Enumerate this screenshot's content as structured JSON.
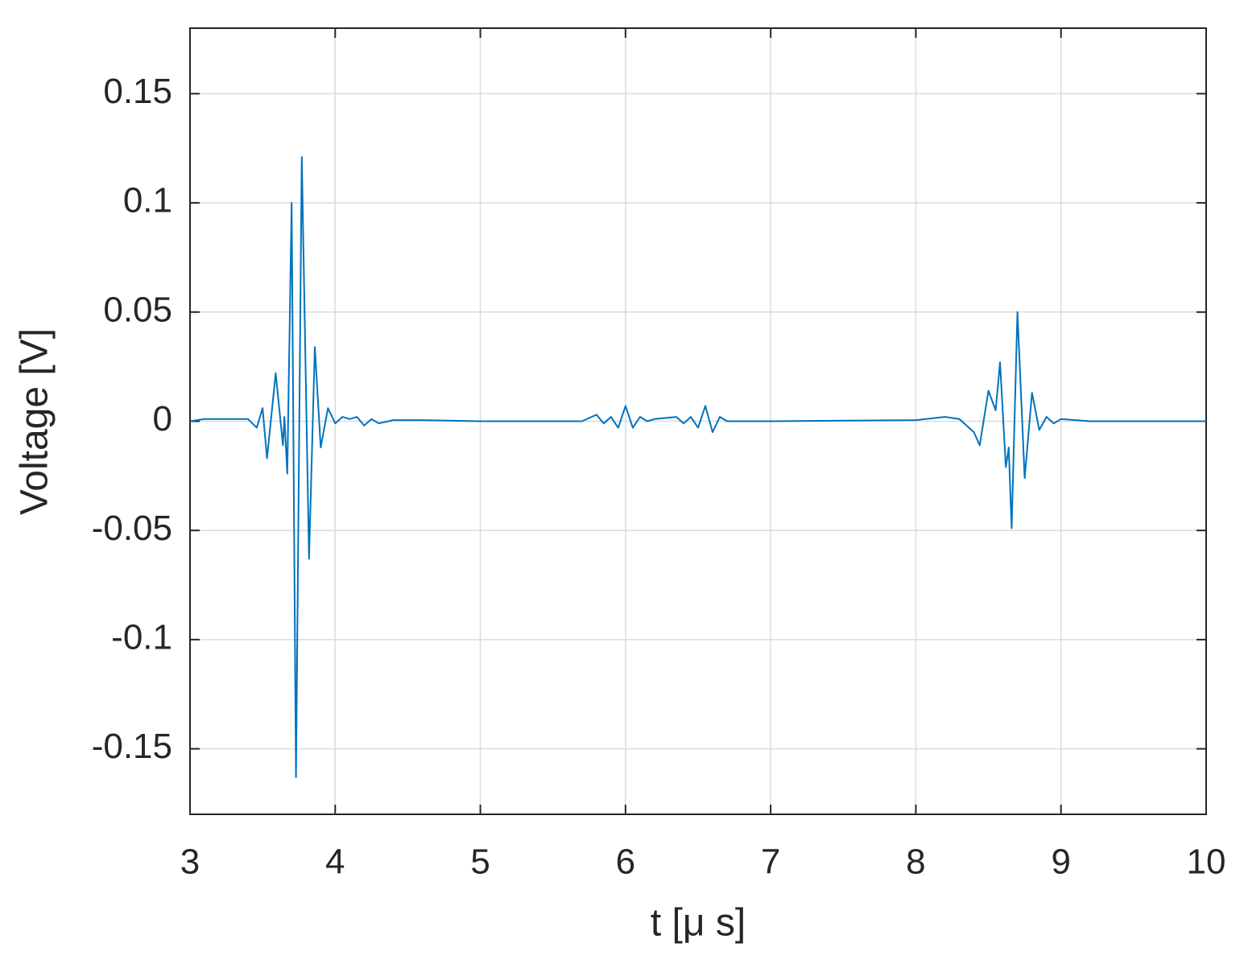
{
  "chart_data": {
    "type": "line",
    "xlabel": "t [μ s]",
    "ylabel": "Voltage [V]",
    "color": "#0072bd",
    "x": [
      3.0,
      3.1,
      3.4,
      3.46,
      3.5,
      3.53,
      3.59,
      3.64,
      3.65,
      3.67,
      3.7,
      3.73,
      3.77,
      3.82,
      3.86,
      3.9,
      3.95,
      4.0,
      4.05,
      4.1,
      4.15,
      4.2,
      4.25,
      4.3,
      4.4,
      4.6,
      5.0,
      5.7,
      5.8,
      5.85,
      5.9,
      5.95,
      6.0,
      6.05,
      6.1,
      6.15,
      6.2,
      6.35,
      6.4,
      6.45,
      6.5,
      6.55,
      6.6,
      6.65,
      6.7,
      7.0,
      8.0,
      8.2,
      8.3,
      8.4,
      8.44,
      8.5,
      8.55,
      8.58,
      8.62,
      8.64,
      8.66,
      8.7,
      8.75,
      8.8,
      8.85,
      8.9,
      8.95,
      9.0,
      9.2,
      10.0
    ],
    "values": [
      0.0,
      0.001,
      0.001,
      -0.003,
      0.006,
      -0.017,
      0.022,
      -0.011,
      0.002,
      -0.024,
      0.1,
      -0.163,
      0.121,
      -0.063,
      0.034,
      -0.012,
      0.006,
      -0.001,
      0.002,
      0.001,
      0.002,
      -0.002,
      0.001,
      -0.001,
      0.0005,
      0.0005,
      0.0,
      0.0,
      0.003,
      -0.001,
      0.002,
      -0.003,
      0.007,
      -0.003,
      0.002,
      0.0,
      0.001,
      0.002,
      -0.001,
      0.002,
      -0.003,
      0.007,
      -0.005,
      0.002,
      0.0,
      0.0,
      0.0005,
      0.002,
      0.001,
      -0.005,
      -0.011,
      0.014,
      0.005,
      0.027,
      -0.021,
      -0.012,
      -0.049,
      0.05,
      -0.026,
      0.013,
      -0.004,
      0.002,
      -0.001,
      0.001,
      0.0,
      0.0
    ],
    "xlim": [
      3,
      10
    ],
    "xticks": [
      3,
      4,
      5,
      6,
      7,
      8,
      9,
      10
    ],
    "ylim": [
      -0.18,
      0.18
    ],
    "yticks": [
      -0.15,
      -0.1,
      -0.05,
      0,
      0.05,
      0.1,
      0.15
    ],
    "grid": true
  }
}
